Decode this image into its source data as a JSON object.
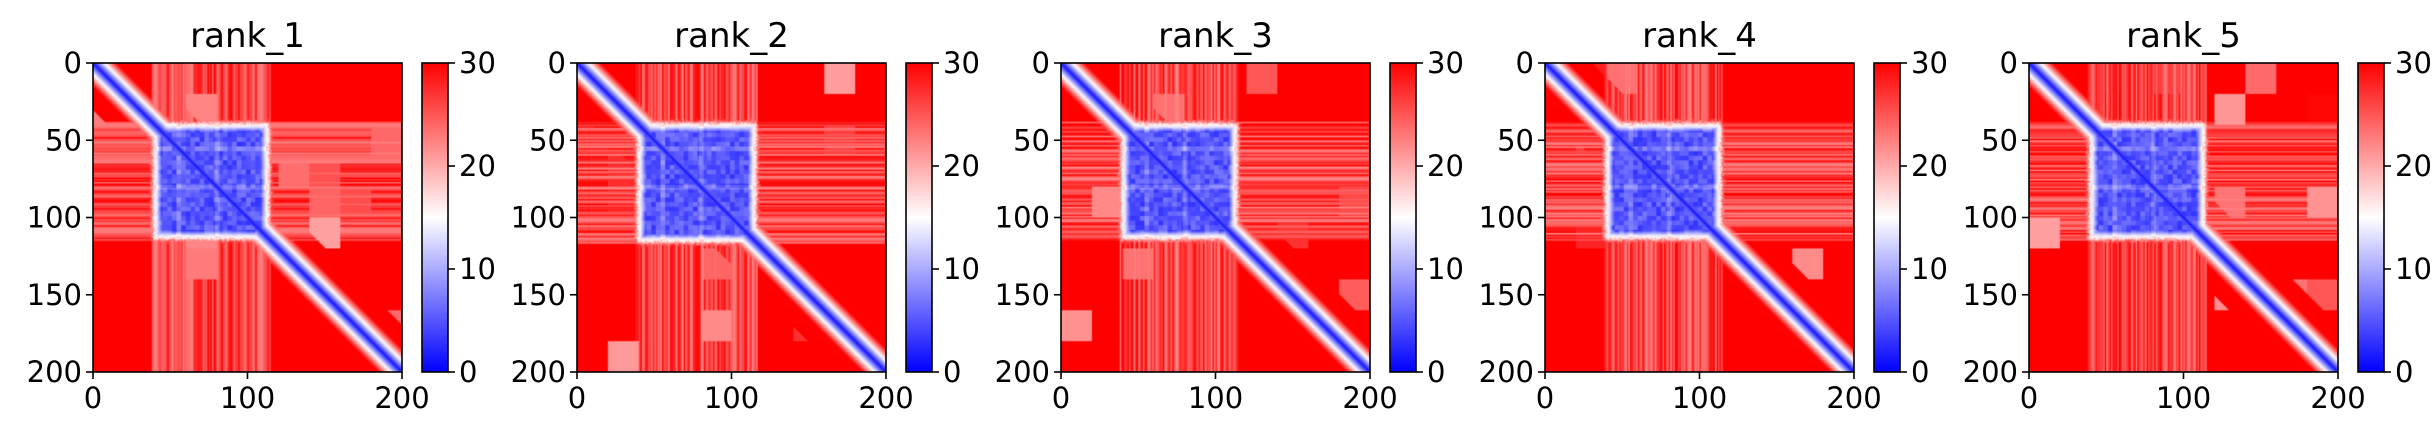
{
  "chart_data": [
    {
      "type": "heatmap",
      "title": "rank_1",
      "x_ticks": [
        0,
        100,
        200
      ],
      "y_ticks": [
        0,
        50,
        100,
        150,
        200
      ],
      "xlim": [
        0,
        200
      ],
      "ylim": [
        200,
        0
      ],
      "colorbar": {
        "min": 0,
        "max": 30,
        "ticks": [
          0,
          10,
          20,
          30
        ],
        "colors": [
          "#0000ff",
          "#ffffff",
          "#ff0000"
        ]
      },
      "description": "pairwise distance map; diagonal ~0, block of low values between residues 40 and 112",
      "diagonal_value": 0,
      "block": {
        "start": 40,
        "end": 112,
        "value": 4
      },
      "background_value": 30
    },
    {
      "type": "heatmap",
      "title": "rank_2",
      "x_ticks": [
        0,
        100,
        200
      ],
      "y_ticks": [
        0,
        50,
        100,
        150,
        200
      ],
      "xlim": [
        0,
        200
      ],
      "ylim": [
        200,
        0
      ],
      "colorbar": {
        "min": 0,
        "max": 30,
        "ticks": [
          0,
          10,
          20,
          30
        ],
        "colors": [
          "#0000ff",
          "#ffffff",
          "#ff0000"
        ]
      },
      "diagonal_value": 0,
      "block": {
        "start": 40,
        "end": 114,
        "value": 4
      },
      "background_value": 30
    },
    {
      "type": "heatmap",
      "title": "rank_3",
      "x_ticks": [
        0,
        100,
        200
      ],
      "y_ticks": [
        0,
        50,
        100,
        150,
        200
      ],
      "xlim": [
        0,
        200
      ],
      "ylim": [
        200,
        0
      ],
      "colorbar": {
        "min": 0,
        "max": 30,
        "ticks": [
          0,
          10,
          20,
          30
        ],
        "colors": [
          "#0000ff",
          "#ffffff",
          "#ff0000"
        ]
      },
      "diagonal_value": 0,
      "block": {
        "start": 40,
        "end": 112,
        "value": 4
      },
      "background_value": 30
    },
    {
      "type": "heatmap",
      "title": "rank_4",
      "x_ticks": [
        0,
        100,
        200
      ],
      "y_ticks": [
        0,
        50,
        100,
        150,
        200
      ],
      "xlim": [
        0,
        200
      ],
      "ylim": [
        200,
        0
      ],
      "colorbar": {
        "min": 0,
        "max": 30,
        "ticks": [
          0,
          10,
          20,
          30
        ],
        "colors": [
          "#0000ff",
          "#ffffff",
          "#ff0000"
        ]
      },
      "diagonal_value": 0,
      "block": {
        "start": 40,
        "end": 112,
        "value": 4
      },
      "background_value": 30
    },
    {
      "type": "heatmap",
      "title": "rank_5",
      "x_ticks": [
        0,
        100,
        200
      ],
      "y_ticks": [
        0,
        50,
        100,
        150,
        200
      ],
      "xlim": [
        0,
        200
      ],
      "ylim": [
        200,
        0
      ],
      "colorbar": {
        "min": 0,
        "max": 30,
        "ticks": [
          0,
          10,
          20,
          30
        ],
        "colors": [
          "#0000ff",
          "#ffffff",
          "#ff0000"
        ]
      },
      "diagonal_value": 0,
      "block": {
        "start": 40,
        "end": 112,
        "value": 4
      },
      "background_value": 30
    }
  ]
}
